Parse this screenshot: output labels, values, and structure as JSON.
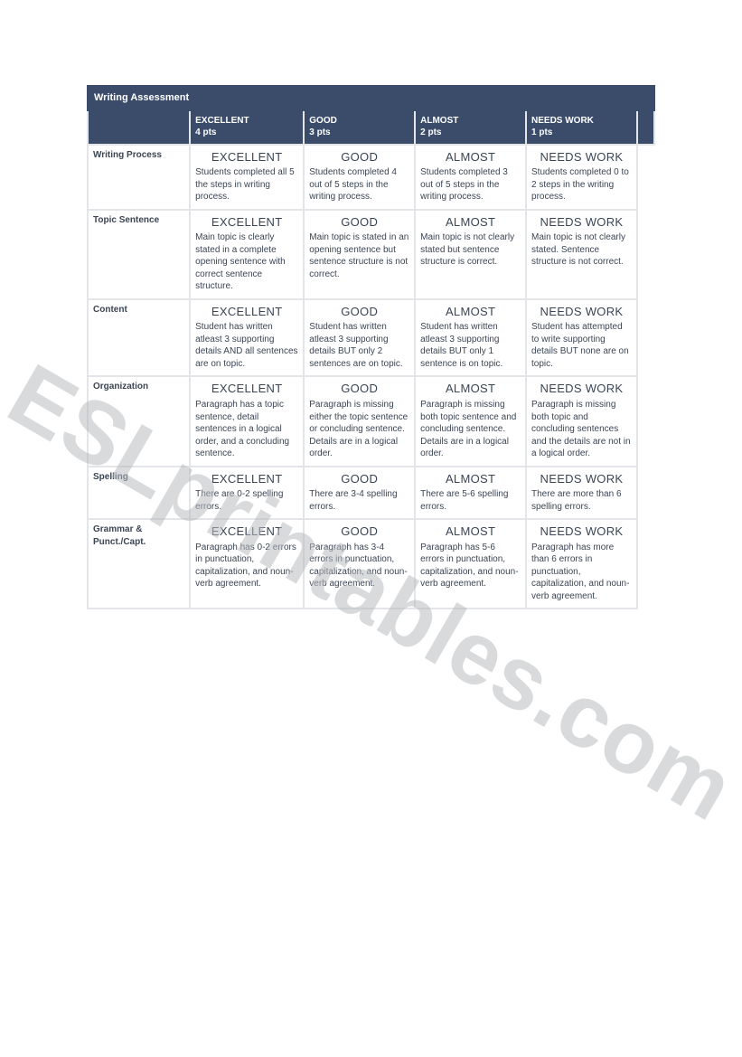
{
  "watermark_text": "ESLprintables.com",
  "colors": {
    "header_bg": "#3b4c6b",
    "header_fg": "#ffffff",
    "border": "#e3e5e8",
    "text": "#3b4554",
    "page_bg": "#ffffff",
    "watermark": "#b9bcc0"
  },
  "rubric": {
    "title": "Writing Assessment",
    "columns": [
      {
        "label": "EXCELLENT",
        "pts": "4 pts"
      },
      {
        "label": "GOOD",
        "pts": "3 pts"
      },
      {
        "label": "ALMOST",
        "pts": "2 pts"
      },
      {
        "label": "NEEDS WORK",
        "pts": "1 pts"
      }
    ],
    "rows": [
      {
        "name": "Writing Process",
        "cells": [
          {
            "level": "EXCELLENT",
            "desc": "Students completed all 5 the steps in writing process."
          },
          {
            "level": "GOOD",
            "desc": "Students completed 4 out of 5 steps in the writing process."
          },
          {
            "level": "ALMOST",
            "desc": "Students completed 3 out of 5 steps in the writing process."
          },
          {
            "level": "NEEDS WORK",
            "desc": "Students completed 0 to 2 steps in the writing process."
          }
        ]
      },
      {
        "name": "Topic Sentence",
        "cells": [
          {
            "level": "EXCELLENT",
            "desc": "Main topic is clearly stated in a complete opening sentence with correct sentence structure."
          },
          {
            "level": "GOOD",
            "desc": "Main topic is stated in an opening sentence but sentence structure is not correct."
          },
          {
            "level": "ALMOST",
            "desc": "Main topic is not clearly stated but sentence structure is correct."
          },
          {
            "level": "NEEDS WORK",
            "desc": "Main topic is not clearly stated. Sentence structure is not correct."
          }
        ]
      },
      {
        "name": "Content",
        "cells": [
          {
            "level": "EXCELLENT",
            "desc": "Student has written atleast 3 supporting details AND all sentences are on topic."
          },
          {
            "level": "GOOD",
            "desc": "Student has written atleast 3 supporting details BUT only 2 sentences are on topic."
          },
          {
            "level": "ALMOST",
            "desc": "Student has written atleast 3 supporting details BUT only 1 sentence is on topic."
          },
          {
            "level": "NEEDS WORK",
            "desc": "Student has attempted to write supporting details BUT none are on topic."
          }
        ]
      },
      {
        "name": "Organization",
        "cells": [
          {
            "level": "EXCELLENT",
            "desc": "Paragraph has a topic sentence, detail sentences in a logical order, and a concluding sentence."
          },
          {
            "level": "GOOD",
            "desc": "Paragraph is missing either the topic sentence or concluding sentence. Details are in a logical order."
          },
          {
            "level": "ALMOST",
            "desc": "Paragraph is missing both topic sentence and concluding sentence. Details are in a logical order."
          },
          {
            "level": "NEEDS WORK",
            "desc": "Paragraph is missing both topic and concluding sentences and the details are not in a logical order."
          }
        ]
      },
      {
        "name": "Spelling",
        "cells": [
          {
            "level": "EXCELLENT",
            "desc": "There are 0-2 spelling errors."
          },
          {
            "level": "GOOD",
            "desc": "There are 3-4 spelling errors."
          },
          {
            "level": "ALMOST",
            "desc": "There are 5-6 spelling errors."
          },
          {
            "level": "NEEDS WORK",
            "desc": "There are more than 6 spelling errors."
          }
        ]
      },
      {
        "name": "Grammar & Punct./Capt.",
        "cells": [
          {
            "level": "EXCELLENT",
            "desc": "Paragraph has 0-2 errors in punctuation, capitalization, and noun-verb agreement."
          },
          {
            "level": "GOOD",
            "desc": "Paragraph has 3-4 errors in punctuation, capitalization, and noun-verb agreement."
          },
          {
            "level": "ALMOST",
            "desc": "Paragraph has 5-6 errors in punctuation, capitalization, and noun-verb agreement."
          },
          {
            "level": "NEEDS WORK",
            "desc": "Paragraph has more than 6 errors in punctuation, capitalization, and noun-verb agreement."
          }
        ]
      }
    ]
  }
}
